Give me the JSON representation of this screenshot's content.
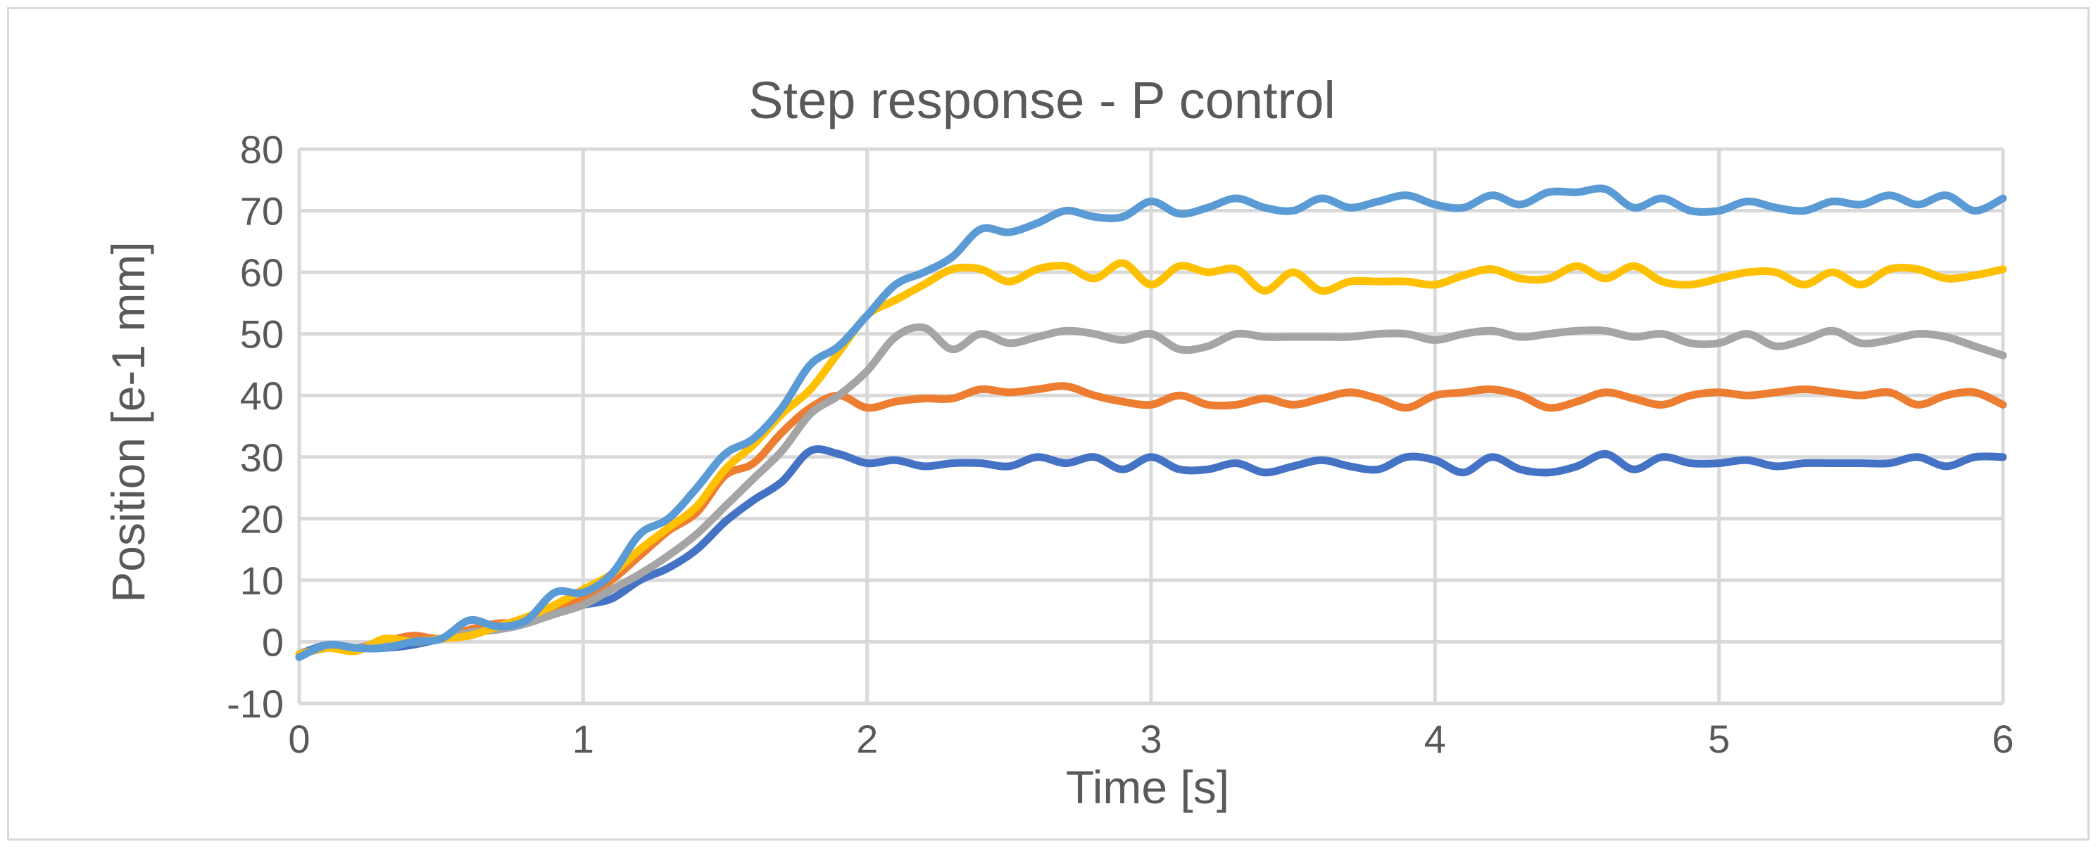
{
  "chart_data": {
    "type": "line",
    "title": "Step response - P control",
    "xlabel": "Time [s]",
    "ylabel": "Position [e-1 mm]",
    "xlim": [
      0,
      6
    ],
    "ylim": [
      -10,
      80
    ],
    "x_ticks": [
      "0",
      "1",
      "2",
      "3",
      "4",
      "5",
      "6"
    ],
    "y_ticks": [
      "-10",
      "0",
      "10",
      "20",
      "30",
      "40",
      "50",
      "60",
      "70",
      "80"
    ],
    "grid": true,
    "legend": "none",
    "x": [
      0,
      0.1,
      0.2,
      0.3,
      0.4,
      0.5,
      0.6,
      0.7,
      0.8,
      0.9,
      1.0,
      1.1,
      1.2,
      1.3,
      1.4,
      1.5,
      1.6,
      1.7,
      1.8,
      1.9,
      2.0,
      2.1,
      2.2,
      2.3,
      2.4,
      2.5,
      2.6,
      2.7,
      2.8,
      2.9,
      3.0,
      3.1,
      3.2,
      3.3,
      3.4,
      3.5,
      3.6,
      3.7,
      3.8,
      3.9,
      4.0,
      4.1,
      4.2,
      4.3,
      4.4,
      4.5,
      4.6,
      4.7,
      4.8,
      4.9,
      5.0,
      5.1,
      5.2,
      5.3,
      5.4,
      5.5,
      5.6,
      5.7,
      5.8,
      5.9,
      6.0
    ],
    "series": [
      {
        "color": "#4472c4",
        "values": [
          -2,
          -0.5,
          -1,
          -1,
          -0.5,
          0.5,
          1.5,
          2,
          3,
          5,
          6,
          7,
          10,
          12,
          15,
          19.5,
          23,
          26,
          31,
          30.5,
          29,
          29.5,
          28.5,
          29,
          29,
          28.5,
          30,
          29,
          30,
          28,
          30,
          28,
          28,
          29,
          27.5,
          28.5,
          29.5,
          28.5,
          28,
          30,
          29.5,
          27.5,
          30,
          28,
          27.5,
          28.5,
          30.5,
          28,
          30,
          29,
          29,
          29.5,
          28.5,
          29,
          29,
          29,
          29,
          30,
          28.5,
          30,
          30
        ]
      },
      {
        "color": "#ed7d31",
        "values": [
          -2,
          -1,
          -1,
          0,
          1,
          0.5,
          2,
          3,
          3,
          5,
          7,
          10,
          14,
          18,
          21,
          27,
          29,
          34,
          38,
          40,
          38,
          39,
          39.5,
          39.5,
          41,
          40.5,
          41,
          41.5,
          40,
          39,
          38.5,
          40,
          38.5,
          38.5,
          39.5,
          38.5,
          39.5,
          40.5,
          39.5,
          38,
          40,
          40.5,
          41,
          40,
          38,
          39,
          40.5,
          39.5,
          38.5,
          40,
          40.5,
          40,
          40.5,
          41,
          40.5,
          40,
          40.5,
          38.5,
          40,
          40.5,
          38.5
        ]
      },
      {
        "color": "#a5a5a5",
        "values": [
          -2,
          -1,
          -1,
          -0.5,
          0,
          0.5,
          1.5,
          2,
          3,
          4.5,
          6,
          8.5,
          11,
          14,
          17.5,
          22,
          26.5,
          31,
          37,
          40,
          44,
          49.5,
          51,
          47.5,
          50,
          48.5,
          49.5,
          50.5,
          50,
          49,
          50,
          47.5,
          48,
          50,
          49.5,
          49.5,
          49.5,
          49.5,
          50,
          50,
          49,
          50,
          50.5,
          49.5,
          50,
          50.5,
          50.5,
          49.5,
          50,
          48.5,
          48.5,
          50,
          48,
          49,
          50.5,
          48.5,
          49,
          50,
          49.5,
          48,
          46.5
        ]
      },
      {
        "color": "#ffc000",
        "values": [
          -2,
          -1,
          -1.5,
          0.5,
          0,
          0.5,
          1,
          2.5,
          4,
          6,
          8.5,
          11,
          15,
          18.5,
          22,
          28,
          32,
          37,
          41,
          47,
          53,
          55.5,
          58,
          60.5,
          60.5,
          58.5,
          60.5,
          61,
          59,
          61.5,
          58,
          61,
          60,
          60.5,
          57,
          60,
          57,
          58.5,
          58.5,
          58.5,
          58,
          59.5,
          60.5,
          59,
          59,
          61,
          59,
          61,
          58.5,
          58,
          59,
          60,
          60,
          58,
          60,
          58,
          60.5,
          60.5,
          59,
          59.5,
          60.5
        ]
      },
      {
        "color": "#5b9bd5",
        "values": [
          -2.5,
          -0.5,
          -1,
          -1,
          0,
          0.5,
          3.5,
          2.5,
          3.5,
          8,
          8,
          11,
          17.5,
          20,
          25,
          30.5,
          33,
          38,
          45,
          48,
          53,
          58,
          60,
          62.5,
          67,
          66.5,
          68,
          70,
          69,
          69,
          71.5,
          69.5,
          70.5,
          72,
          70.5,
          70,
          72,
          70.5,
          71.5,
          72.5,
          71,
          70.5,
          72.5,
          71,
          73,
          73,
          73.5,
          70.5,
          72,
          70,
          70,
          71.5,
          70.5,
          70,
          71.5,
          71,
          72.5,
          71,
          72.5,
          70,
          72
        ]
      }
    ]
  }
}
